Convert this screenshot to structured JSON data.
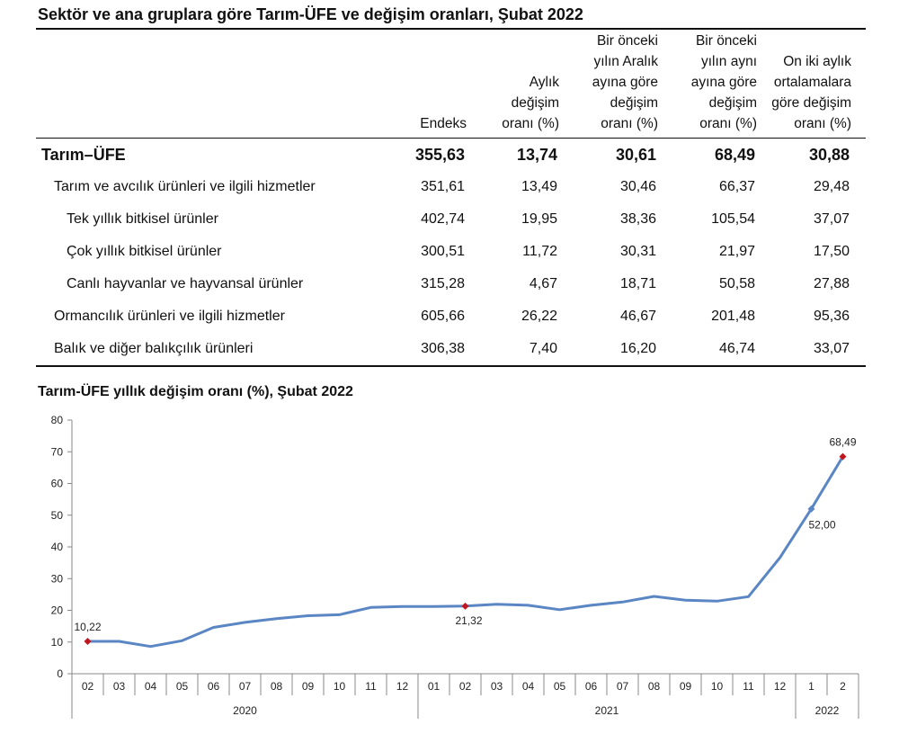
{
  "table": {
    "title": "Sektör ve ana gruplara göre Tarım-ÜFE ve değişim oranları, Şubat 2022",
    "headers": [
      "Endeks",
      "Aylık\ndeğişim\noranı (%)",
      "Bir önceki\nyılın Aralık\nayına göre\ndeğişim\noranı (%)",
      "Bir önceki\nyılın aynı\nayına göre\ndeğişim\noranı (%)",
      "On iki aylık\nortalamalara\ngöre değişim\noranı (%)"
    ],
    "rows": [
      {
        "label": "Tarım–ÜFE",
        "values": [
          "355,63",
          "13,74",
          "30,61",
          "68,49",
          "30,88"
        ]
      },
      {
        "label": "Tarım ve avcılık ürünleri ve ilgili hizmetler",
        "values": [
          "351,61",
          "13,49",
          "30,46",
          "66,37",
          "29,48"
        ]
      },
      {
        "label": "Tek yıllık bitkisel ürünler",
        "values": [
          "402,74",
          "19,95",
          "38,36",
          "105,54",
          "37,07"
        ]
      },
      {
        "label": "Çok yıllık bitkisel ürünler",
        "values": [
          "300,51",
          "11,72",
          "30,31",
          "21,97",
          "17,50"
        ]
      },
      {
        "label": "Canlı hayvanlar ve hayvansal ürünler",
        "values": [
          "315,28",
          "4,67",
          "18,71",
          "50,58",
          "27,88"
        ]
      },
      {
        "label": "Ormancılık ürünleri ve ilgili hizmetler",
        "values": [
          "605,66",
          "26,22",
          "46,67",
          "201,48",
          "95,36"
        ]
      },
      {
        "label": "Balık ve diğer balıkçılık ürünleri",
        "values": [
          "306,38",
          "7,40",
          "16,20",
          "46,74",
          "33,07"
        ]
      }
    ]
  },
  "chart_data": {
    "type": "line",
    "title": "Tarım-ÜFE yıllık değişim oranı (%), Şubat 2022",
    "xlabel": "",
    "ylabel": "",
    "ylim": [
      0,
      80
    ],
    "yticks": [
      0,
      10,
      20,
      30,
      40,
      50,
      60,
      70,
      80
    ],
    "grid": false,
    "categories": [
      "02",
      "03",
      "04",
      "05",
      "06",
      "07",
      "08",
      "09",
      "10",
      "11",
      "12",
      "01",
      "02",
      "03",
      "04",
      "05",
      "06",
      "07",
      "08",
      "09",
      "10",
      "11",
      "12",
      "1",
      "2"
    ],
    "years": [
      {
        "label": "2020",
        "span": 11
      },
      {
        "label": "2021",
        "span": 12
      },
      {
        "label": "2022",
        "span": 2
      }
    ],
    "series": [
      {
        "color": "#5b86c4",
        "values": [
          10.22,
          10.2,
          8.6,
          10.4,
          14.6,
          16.2,
          17.4,
          18.3,
          18.6,
          20.9,
          21.2,
          21.2,
          21.32,
          21.9,
          21.6,
          20.2,
          21.6,
          22.6,
          24.4,
          23.2,
          22.9,
          24.3,
          36.6,
          52.0,
          68.49
        ]
      }
    ],
    "annotations": [
      {
        "index": 0,
        "label": "10,22",
        "marker": "diamond",
        "color": "#c0161e"
      },
      {
        "index": 12,
        "label": "21,32",
        "marker": "diamond",
        "color": "#c0161e"
      },
      {
        "index": 23,
        "label": "52,00",
        "marker": "diamond",
        "color": "#5b86c4"
      },
      {
        "index": 24,
        "label": "68,49",
        "marker": "diamond",
        "color": "#c0161e"
      }
    ]
  }
}
